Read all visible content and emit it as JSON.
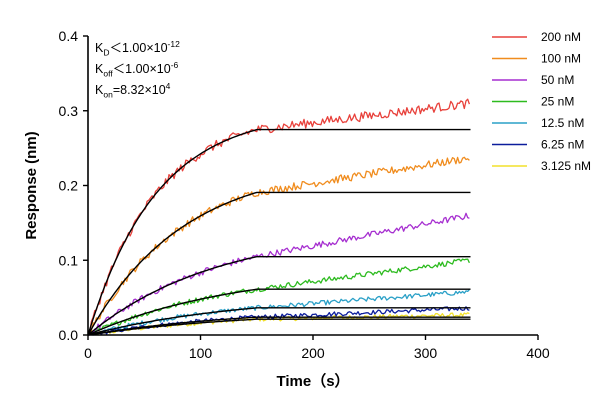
{
  "chart_data": {
    "type": "line",
    "xlabel": "Time（s）",
    "ylabel": "Response (nm)",
    "xlim": [
      0,
      400
    ],
    "ylim": [
      0,
      0.4
    ],
    "xticks": [
      0,
      100,
      200,
      300,
      400
    ],
    "yticks": [
      0.0,
      0.1,
      0.2,
      0.3,
      0.4
    ],
    "xtick_labels": [
      "0",
      "100",
      "200",
      "300",
      "400"
    ],
    "ytick_labels": [
      "0.0",
      "0.1",
      "0.2",
      "0.3",
      "0.4"
    ],
    "grid": false,
    "legend_position": "top-right",
    "association_end": 150,
    "measured_end": 340,
    "annotations": {
      "kd": {
        "sym": "K",
        "sub": "D",
        "rel": "＜1.00×10",
        "exp": "-12"
      },
      "koff": {
        "sym": "K",
        "sub": "off",
        "rel": "＜1.00×10",
        "exp": "-6"
      },
      "kon": {
        "sym": "K",
        "sub": "on",
        "rel": "=8.32×10",
        "exp": "4"
      }
    },
    "series": [
      {
        "name": "200 nM",
        "color": "#e8413b",
        "plateau": 0.3,
        "k": 0.0165,
        "measured_end_value": 0.31
      },
      {
        "name": "100 nM",
        "color": "#f08c1e",
        "plateau": 0.23,
        "k": 0.0118,
        "measured_end_value": 0.237
      },
      {
        "name": "50 nM",
        "color": "#a62fd0",
        "plateau": 0.143,
        "k": 0.0088,
        "measured_end_value": 0.16
      },
      {
        "name": "25 nM",
        "color": "#2dbb1f",
        "plateau": 0.09,
        "k": 0.0076,
        "measured_end_value": 0.1
      },
      {
        "name": "12.5 nM",
        "color": "#2aa0c7",
        "plateau": 0.055,
        "k": 0.0072,
        "measured_end_value": 0.058
      },
      {
        "name": "6.25 nM",
        "color": "#0c1d9c",
        "plateau": 0.037,
        "k": 0.0069,
        "measured_end_value": 0.036
      },
      {
        "name": "3.125 nM",
        "color": "#f2e12c",
        "plateau": 0.033,
        "k": 0.0068,
        "measured_end_value": 0.027
      }
    ],
    "fit_color": "#000000"
  }
}
